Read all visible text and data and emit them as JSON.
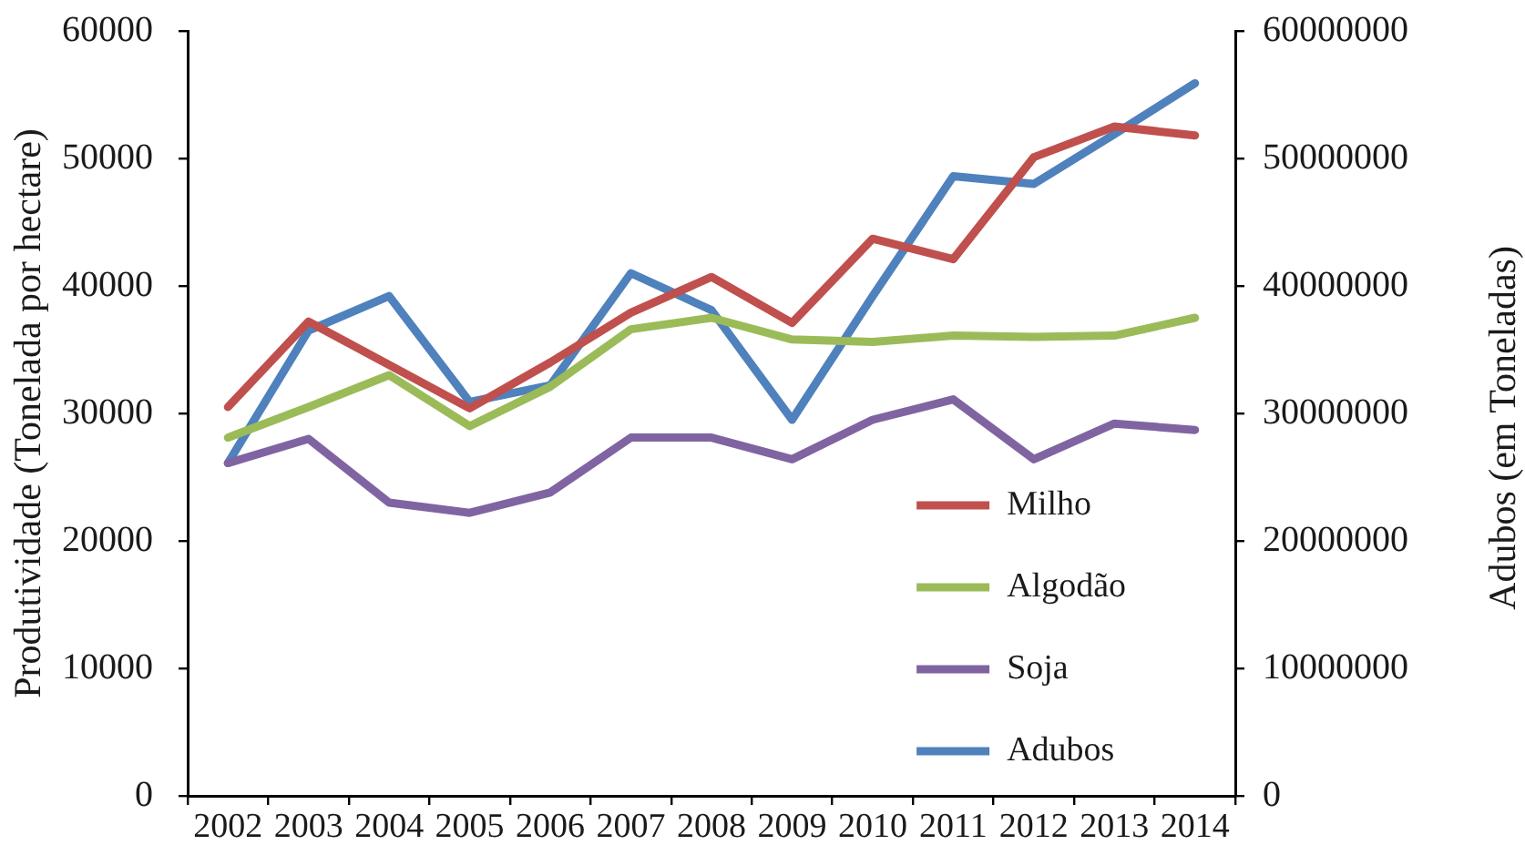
{
  "chart_data": {
    "type": "line",
    "ylabel": "Produtividade (Tonelada por hectare)",
    "y2label": "Adubos (em Toneladas)",
    "categories": [
      "2002",
      "2003",
      "2004",
      "2005",
      "2006",
      "2007",
      "2008",
      "2009",
      "2010",
      "2011",
      "2012",
      "2013",
      "2014"
    ],
    "series": [
      {
        "name": "Milho",
        "color": "#c0504d",
        "values": [
          30500,
          37200,
          33800,
          30400,
          34000,
          37900,
          40700,
          37100,
          43700,
          42100,
          50100,
          52500,
          51800
        ]
      },
      {
        "name": "Algodão",
        "color": "#9bbb59",
        "values": [
          28100,
          30500,
          33000,
          29000,
          32100,
          36600,
          37500,
          35800,
          35600,
          36100,
          36000,
          36100,
          37500
        ]
      },
      {
        "name": "Soja",
        "color": "#8064a2",
        "values": [
          26100,
          28000,
          23000,
          22200,
          23800,
          28100,
          28100,
          26400,
          29500,
          31100,
          26400,
          29200,
          28700
        ]
      },
      {
        "name": "Adubos",
        "color": "#4f81bd",
        "axis": "y2",
        "values": [
          26100000,
          36500000,
          39200000,
          30900000,
          32200000,
          41000000,
          38100000,
          29500000,
          39200000,
          48600000,
          48000000,
          51900000,
          55900000
        ]
      }
    ],
    "ylim": [
      0,
      60000
    ],
    "yticks": [
      0,
      10000,
      20000,
      30000,
      40000,
      50000,
      60000
    ],
    "y2lim": [
      0,
      60000000
    ],
    "y2ticks": [
      0,
      10000000,
      20000000,
      30000000,
      40000000,
      50000000,
      60000000
    ],
    "grid": false,
    "legend": "bottom right",
    "marker": "none",
    "line_style": "solid"
  }
}
